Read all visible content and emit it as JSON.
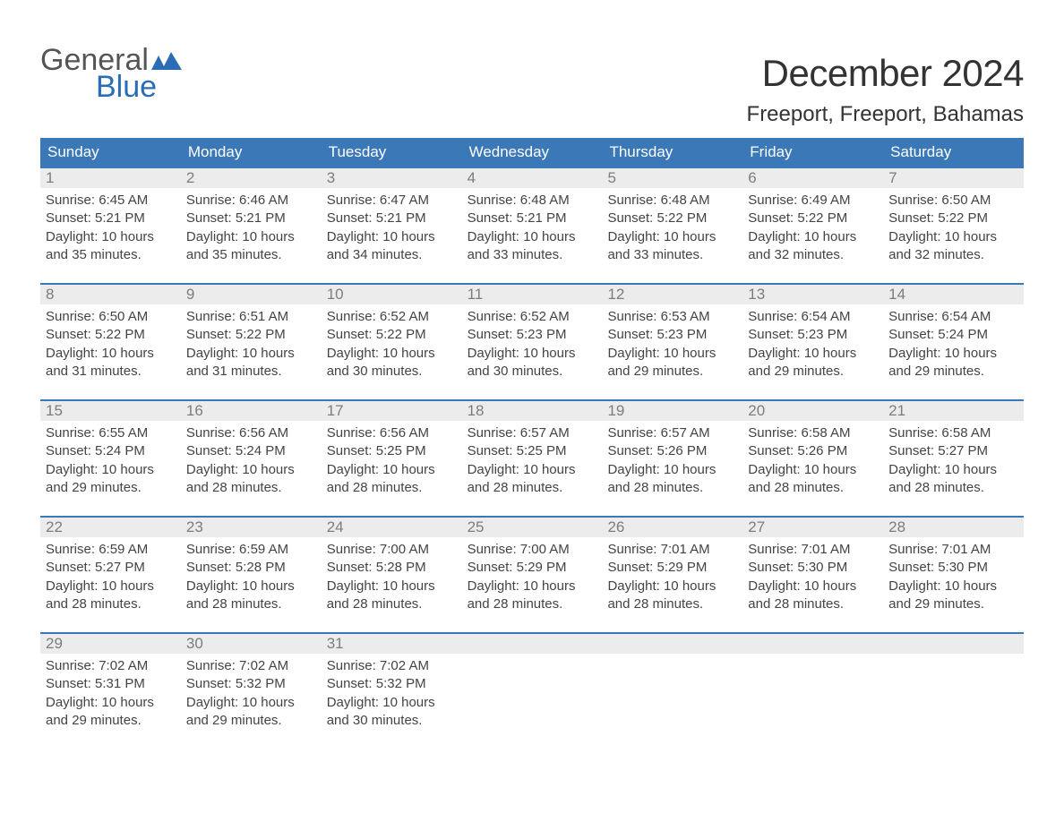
{
  "branding": {
    "logo_word1": "General",
    "logo_word2": "Blue",
    "logo_word1_color": "#555555",
    "logo_word2_color": "#2a6db5",
    "flag_color": "#2a6db5"
  },
  "header": {
    "month_title": "December 2024",
    "location": "Freeport, Freeport, Bahamas"
  },
  "colors": {
    "header_bar_bg": "#3b78b8",
    "header_bar_text": "#ffffff",
    "week_border": "#3b78b8",
    "daynum_bg": "#ececec",
    "daynum_text": "#7d7d7d",
    "body_text": "#444444",
    "background": "#ffffff"
  },
  "weekdays": [
    "Sunday",
    "Monday",
    "Tuesday",
    "Wednesday",
    "Thursday",
    "Friday",
    "Saturday"
  ],
  "weeks": [
    [
      {
        "day": "1",
        "sunrise": "Sunrise: 6:45 AM",
        "sunset": "Sunset: 5:21 PM",
        "daylight1": "Daylight: 10 hours",
        "daylight2": "and 35 minutes."
      },
      {
        "day": "2",
        "sunrise": "Sunrise: 6:46 AM",
        "sunset": "Sunset: 5:21 PM",
        "daylight1": "Daylight: 10 hours",
        "daylight2": "and 35 minutes."
      },
      {
        "day": "3",
        "sunrise": "Sunrise: 6:47 AM",
        "sunset": "Sunset: 5:21 PM",
        "daylight1": "Daylight: 10 hours",
        "daylight2": "and 34 minutes."
      },
      {
        "day": "4",
        "sunrise": "Sunrise: 6:48 AM",
        "sunset": "Sunset: 5:21 PM",
        "daylight1": "Daylight: 10 hours",
        "daylight2": "and 33 minutes."
      },
      {
        "day": "5",
        "sunrise": "Sunrise: 6:48 AM",
        "sunset": "Sunset: 5:22 PM",
        "daylight1": "Daylight: 10 hours",
        "daylight2": "and 33 minutes."
      },
      {
        "day": "6",
        "sunrise": "Sunrise: 6:49 AM",
        "sunset": "Sunset: 5:22 PM",
        "daylight1": "Daylight: 10 hours",
        "daylight2": "and 32 minutes."
      },
      {
        "day": "7",
        "sunrise": "Sunrise: 6:50 AM",
        "sunset": "Sunset: 5:22 PM",
        "daylight1": "Daylight: 10 hours",
        "daylight2": "and 32 minutes."
      }
    ],
    [
      {
        "day": "8",
        "sunrise": "Sunrise: 6:50 AM",
        "sunset": "Sunset: 5:22 PM",
        "daylight1": "Daylight: 10 hours",
        "daylight2": "and 31 minutes."
      },
      {
        "day": "9",
        "sunrise": "Sunrise: 6:51 AM",
        "sunset": "Sunset: 5:22 PM",
        "daylight1": "Daylight: 10 hours",
        "daylight2": "and 31 minutes."
      },
      {
        "day": "10",
        "sunrise": "Sunrise: 6:52 AM",
        "sunset": "Sunset: 5:22 PM",
        "daylight1": "Daylight: 10 hours",
        "daylight2": "and 30 minutes."
      },
      {
        "day": "11",
        "sunrise": "Sunrise: 6:52 AM",
        "sunset": "Sunset: 5:23 PM",
        "daylight1": "Daylight: 10 hours",
        "daylight2": "and 30 minutes."
      },
      {
        "day": "12",
        "sunrise": "Sunrise: 6:53 AM",
        "sunset": "Sunset: 5:23 PM",
        "daylight1": "Daylight: 10 hours",
        "daylight2": "and 29 minutes."
      },
      {
        "day": "13",
        "sunrise": "Sunrise: 6:54 AM",
        "sunset": "Sunset: 5:23 PM",
        "daylight1": "Daylight: 10 hours",
        "daylight2": "and 29 minutes."
      },
      {
        "day": "14",
        "sunrise": "Sunrise: 6:54 AM",
        "sunset": "Sunset: 5:24 PM",
        "daylight1": "Daylight: 10 hours",
        "daylight2": "and 29 minutes."
      }
    ],
    [
      {
        "day": "15",
        "sunrise": "Sunrise: 6:55 AM",
        "sunset": "Sunset: 5:24 PM",
        "daylight1": "Daylight: 10 hours",
        "daylight2": "and 29 minutes."
      },
      {
        "day": "16",
        "sunrise": "Sunrise: 6:56 AM",
        "sunset": "Sunset: 5:24 PM",
        "daylight1": "Daylight: 10 hours",
        "daylight2": "and 28 minutes."
      },
      {
        "day": "17",
        "sunrise": "Sunrise: 6:56 AM",
        "sunset": "Sunset: 5:25 PM",
        "daylight1": "Daylight: 10 hours",
        "daylight2": "and 28 minutes."
      },
      {
        "day": "18",
        "sunrise": "Sunrise: 6:57 AM",
        "sunset": "Sunset: 5:25 PM",
        "daylight1": "Daylight: 10 hours",
        "daylight2": "and 28 minutes."
      },
      {
        "day": "19",
        "sunrise": "Sunrise: 6:57 AM",
        "sunset": "Sunset: 5:26 PM",
        "daylight1": "Daylight: 10 hours",
        "daylight2": "and 28 minutes."
      },
      {
        "day": "20",
        "sunrise": "Sunrise: 6:58 AM",
        "sunset": "Sunset: 5:26 PM",
        "daylight1": "Daylight: 10 hours",
        "daylight2": "and 28 minutes."
      },
      {
        "day": "21",
        "sunrise": "Sunrise: 6:58 AM",
        "sunset": "Sunset: 5:27 PM",
        "daylight1": "Daylight: 10 hours",
        "daylight2": "and 28 minutes."
      }
    ],
    [
      {
        "day": "22",
        "sunrise": "Sunrise: 6:59 AM",
        "sunset": "Sunset: 5:27 PM",
        "daylight1": "Daylight: 10 hours",
        "daylight2": "and 28 minutes."
      },
      {
        "day": "23",
        "sunrise": "Sunrise: 6:59 AM",
        "sunset": "Sunset: 5:28 PM",
        "daylight1": "Daylight: 10 hours",
        "daylight2": "and 28 minutes."
      },
      {
        "day": "24",
        "sunrise": "Sunrise: 7:00 AM",
        "sunset": "Sunset: 5:28 PM",
        "daylight1": "Daylight: 10 hours",
        "daylight2": "and 28 minutes."
      },
      {
        "day": "25",
        "sunrise": "Sunrise: 7:00 AM",
        "sunset": "Sunset: 5:29 PM",
        "daylight1": "Daylight: 10 hours",
        "daylight2": "and 28 minutes."
      },
      {
        "day": "26",
        "sunrise": "Sunrise: 7:01 AM",
        "sunset": "Sunset: 5:29 PM",
        "daylight1": "Daylight: 10 hours",
        "daylight2": "and 28 minutes."
      },
      {
        "day": "27",
        "sunrise": "Sunrise: 7:01 AM",
        "sunset": "Sunset: 5:30 PM",
        "daylight1": "Daylight: 10 hours",
        "daylight2": "and 28 minutes."
      },
      {
        "day": "28",
        "sunrise": "Sunrise: 7:01 AM",
        "sunset": "Sunset: 5:30 PM",
        "daylight1": "Daylight: 10 hours",
        "daylight2": "and 29 minutes."
      }
    ],
    [
      {
        "day": "29",
        "sunrise": "Sunrise: 7:02 AM",
        "sunset": "Sunset: 5:31 PM",
        "daylight1": "Daylight: 10 hours",
        "daylight2": "and 29 minutes."
      },
      {
        "day": "30",
        "sunrise": "Sunrise: 7:02 AM",
        "sunset": "Sunset: 5:32 PM",
        "daylight1": "Daylight: 10 hours",
        "daylight2": "and 29 minutes."
      },
      {
        "day": "31",
        "sunrise": "Sunrise: 7:02 AM",
        "sunset": "Sunset: 5:32 PM",
        "daylight1": "Daylight: 10 hours",
        "daylight2": "and 30 minutes."
      },
      {
        "day": "",
        "sunrise": "",
        "sunset": "",
        "daylight1": "",
        "daylight2": ""
      },
      {
        "day": "",
        "sunrise": "",
        "sunset": "",
        "daylight1": "",
        "daylight2": ""
      },
      {
        "day": "",
        "sunrise": "",
        "sunset": "",
        "daylight1": "",
        "daylight2": ""
      },
      {
        "day": "",
        "sunrise": "",
        "sunset": "",
        "daylight1": "",
        "daylight2": ""
      }
    ]
  ]
}
